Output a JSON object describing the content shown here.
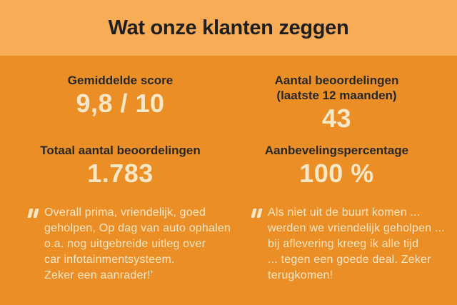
{
  "theme": {
    "band_color": "#F8AC55",
    "body_color": "#EC8E26",
    "title_color": "#1F1F1F",
    "label_color": "#272727",
    "value_color": "#F8E8C8",
    "quote_color": "#F7E7C6"
  },
  "header": {
    "title": "Wat onze klanten zeggen"
  },
  "stats": [
    {
      "label": "Gemiddelde score",
      "value": "9,8 / 10"
    },
    {
      "label": "Aantal beoordelingen\n(laatste 12 maanden)",
      "value": "43"
    },
    {
      "label": "Totaal aantal beoordelingen",
      "value": "1.783"
    },
    {
      "label": "Aanbevelingspercentage",
      "value": "100 %"
    }
  ],
  "quotes": [
    {
      "icon": "double-quote",
      "text": "Overall prima, vriendelijk, goed\ngeholpen, Op dag van auto ophalen\no.a. nog uitgebreide uitleg over\ncar infotainmentsysteem.\nZeker een aanrader!’"
    },
    {
      "icon": "double-quote",
      "text": "Als niet uit de buurt komen ...\nwerden we vriendelijk geholpen ...\nbij aflevering kreeg ik alle tijd\n... tegen een goede deal. Zeker\nterugkomen!"
    }
  ]
}
